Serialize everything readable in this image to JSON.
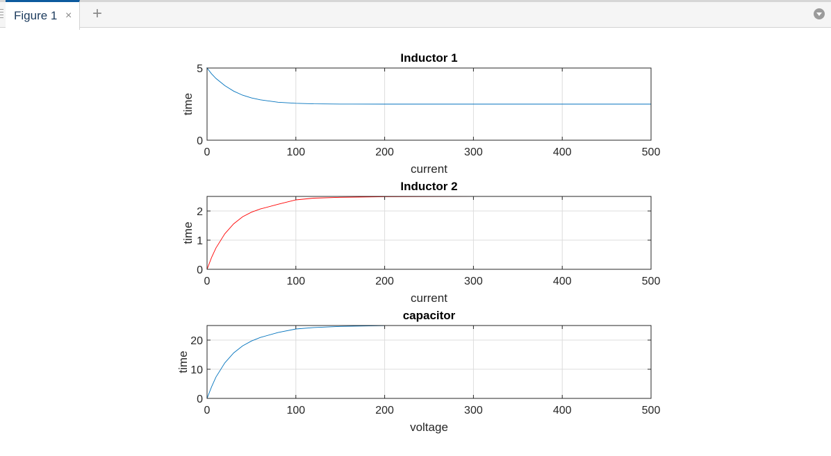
{
  "window": {
    "tab_label": "Figure 1",
    "close_glyph": "×",
    "add_glyph": "+"
  },
  "colors": {
    "series_blue": "#0072bd",
    "series_red": "#ff0000",
    "axis": "#262626",
    "grid": "#dcdcdc"
  },
  "chart_data": [
    {
      "type": "line",
      "title": "Inductor 1",
      "xlabel": "current",
      "ylabel": "time",
      "xlim": [
        0,
        500
      ],
      "ylim": [
        0,
        5
      ],
      "xticks": [
        0,
        100,
        200,
        300,
        400,
        500
      ],
      "yticks": [
        0,
        5
      ],
      "grid": true,
      "series": [
        {
          "color": "#0072bd",
          "x": [
            0,
            0,
            5,
            10,
            20,
            30,
            40,
            50,
            60,
            80,
            100,
            120,
            150,
            200,
            300,
            400,
            500
          ],
          "y": [
            0,
            5,
            4.6,
            4.28,
            3.78,
            3.4,
            3.12,
            2.93,
            2.8,
            2.63,
            2.56,
            2.52,
            2.505,
            2.5,
            2.5,
            2.5,
            2.5
          ]
        }
      ]
    },
    {
      "type": "line",
      "title": "Inductor 2",
      "xlabel": "current",
      "ylabel": "time",
      "xlim": [
        0,
        500
      ],
      "ylim": [
        0,
        2.5
      ],
      "xticks": [
        0,
        100,
        200,
        300,
        400,
        500
      ],
      "yticks": [
        0,
        1,
        2
      ],
      "grid": true,
      "series": [
        {
          "color": "#ff0000",
          "x": [
            0,
            5,
            10,
            20,
            30,
            40,
            50,
            60,
            80,
            100,
            120,
            150,
            200,
            300,
            400,
            500
          ],
          "y": [
            0,
            0.4,
            0.73,
            1.22,
            1.56,
            1.8,
            1.96,
            2.07,
            2.23,
            2.38,
            2.44,
            2.47,
            2.49,
            2.5,
            2.5,
            2.5
          ]
        }
      ]
    },
    {
      "type": "line",
      "title": "capacitor",
      "xlabel": "voltage",
      "ylabel": "time",
      "xlim": [
        0,
        500
      ],
      "ylim": [
        0,
        25
      ],
      "xticks": [
        0,
        100,
        200,
        300,
        400,
        500
      ],
      "yticks": [
        0,
        10,
        20
      ],
      "grid": true,
      "series": [
        {
          "color": "#0072bd",
          "x": [
            0,
            5,
            10,
            20,
            30,
            40,
            50,
            60,
            80,
            100,
            120,
            150,
            200
          ],
          "y": [
            0,
            3.9,
            7.3,
            12.2,
            15.6,
            18.0,
            19.7,
            20.9,
            22.6,
            23.8,
            24.3,
            24.7,
            24.95
          ]
        }
      ]
    }
  ]
}
